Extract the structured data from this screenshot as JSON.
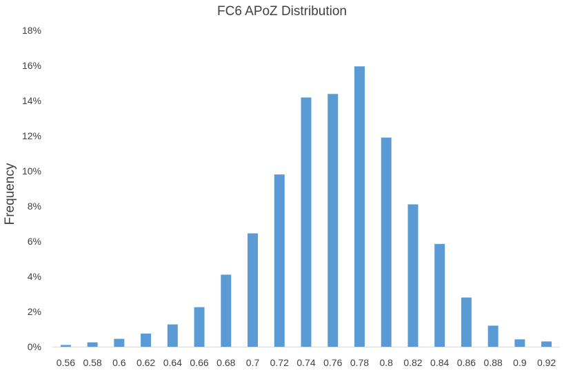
{
  "chart_data": {
    "type": "bar",
    "title": "FC6 APoZ Distribution",
    "xlabel": "",
    "ylabel": "Frequency",
    "categories": [
      "0.56",
      "0.58",
      "0.6",
      "0.62",
      "0.64",
      "0.66",
      "0.68",
      "0.7",
      "0.72",
      "0.74",
      "0.76",
      "0.78",
      "0.8",
      "0.82",
      "0.84",
      "0.86",
      "0.88",
      "0.9",
      "0.92"
    ],
    "values": [
      0.1,
      0.25,
      0.45,
      0.75,
      1.27,
      2.25,
      4.1,
      6.45,
      9.8,
      14.18,
      14.38,
      15.95,
      11.9,
      8.1,
      5.85,
      2.8,
      1.2,
      0.42,
      0.3
    ],
    "ylim": [
      0,
      18
    ],
    "yticks": [
      "0%",
      "2%",
      "4%",
      "6%",
      "8%",
      "10%",
      "12%",
      "14%",
      "16%",
      "18%"
    ],
    "grid": false,
    "colors": {
      "bar": "#5b9bd5",
      "text": "#404040",
      "axis": "#d9d9d9"
    }
  }
}
